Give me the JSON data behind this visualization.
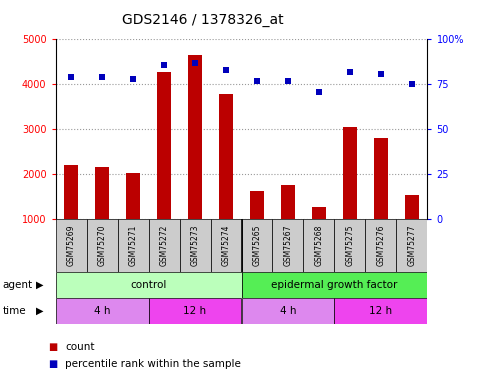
{
  "title": "GDS2146 / 1378326_at",
  "samples": [
    "GSM75269",
    "GSM75270",
    "GSM75271",
    "GSM75272",
    "GSM75273",
    "GSM75274",
    "GSM75265",
    "GSM75267",
    "GSM75268",
    "GSM75275",
    "GSM75276",
    "GSM75277"
  ],
  "counts": [
    2200,
    2170,
    2040,
    4280,
    4650,
    3780,
    1640,
    1760,
    1270,
    3050,
    2800,
    1540
  ],
  "percentiles": [
    79,
    79,
    78,
    86,
    87,
    83,
    77,
    77,
    71,
    82,
    81,
    75
  ],
  "ylim_left": [
    1000,
    5000
  ],
  "ylim_right": [
    0,
    100
  ],
  "yticks_left": [
    1000,
    2000,
    3000,
    4000,
    5000
  ],
  "yticks_right": [
    0,
    25,
    50,
    75,
    100
  ],
  "bar_color": "#BB0000",
  "dot_color": "#0000BB",
  "grid_color": "#999999",
  "agent_control_color": "#BBFFBB",
  "agent_egf_color": "#55EE55",
  "sample_bg_color": "#CCCCCC",
  "time_4h_color": "#DD88EE",
  "time_12h_color": "#EE44EE",
  "legend_count_color": "#BB0000",
  "legend_pct_color": "#0000BB",
  "title_fontsize": 10,
  "tick_fontsize": 7,
  "label_fontsize": 7.5,
  "bar_width": 0.45
}
